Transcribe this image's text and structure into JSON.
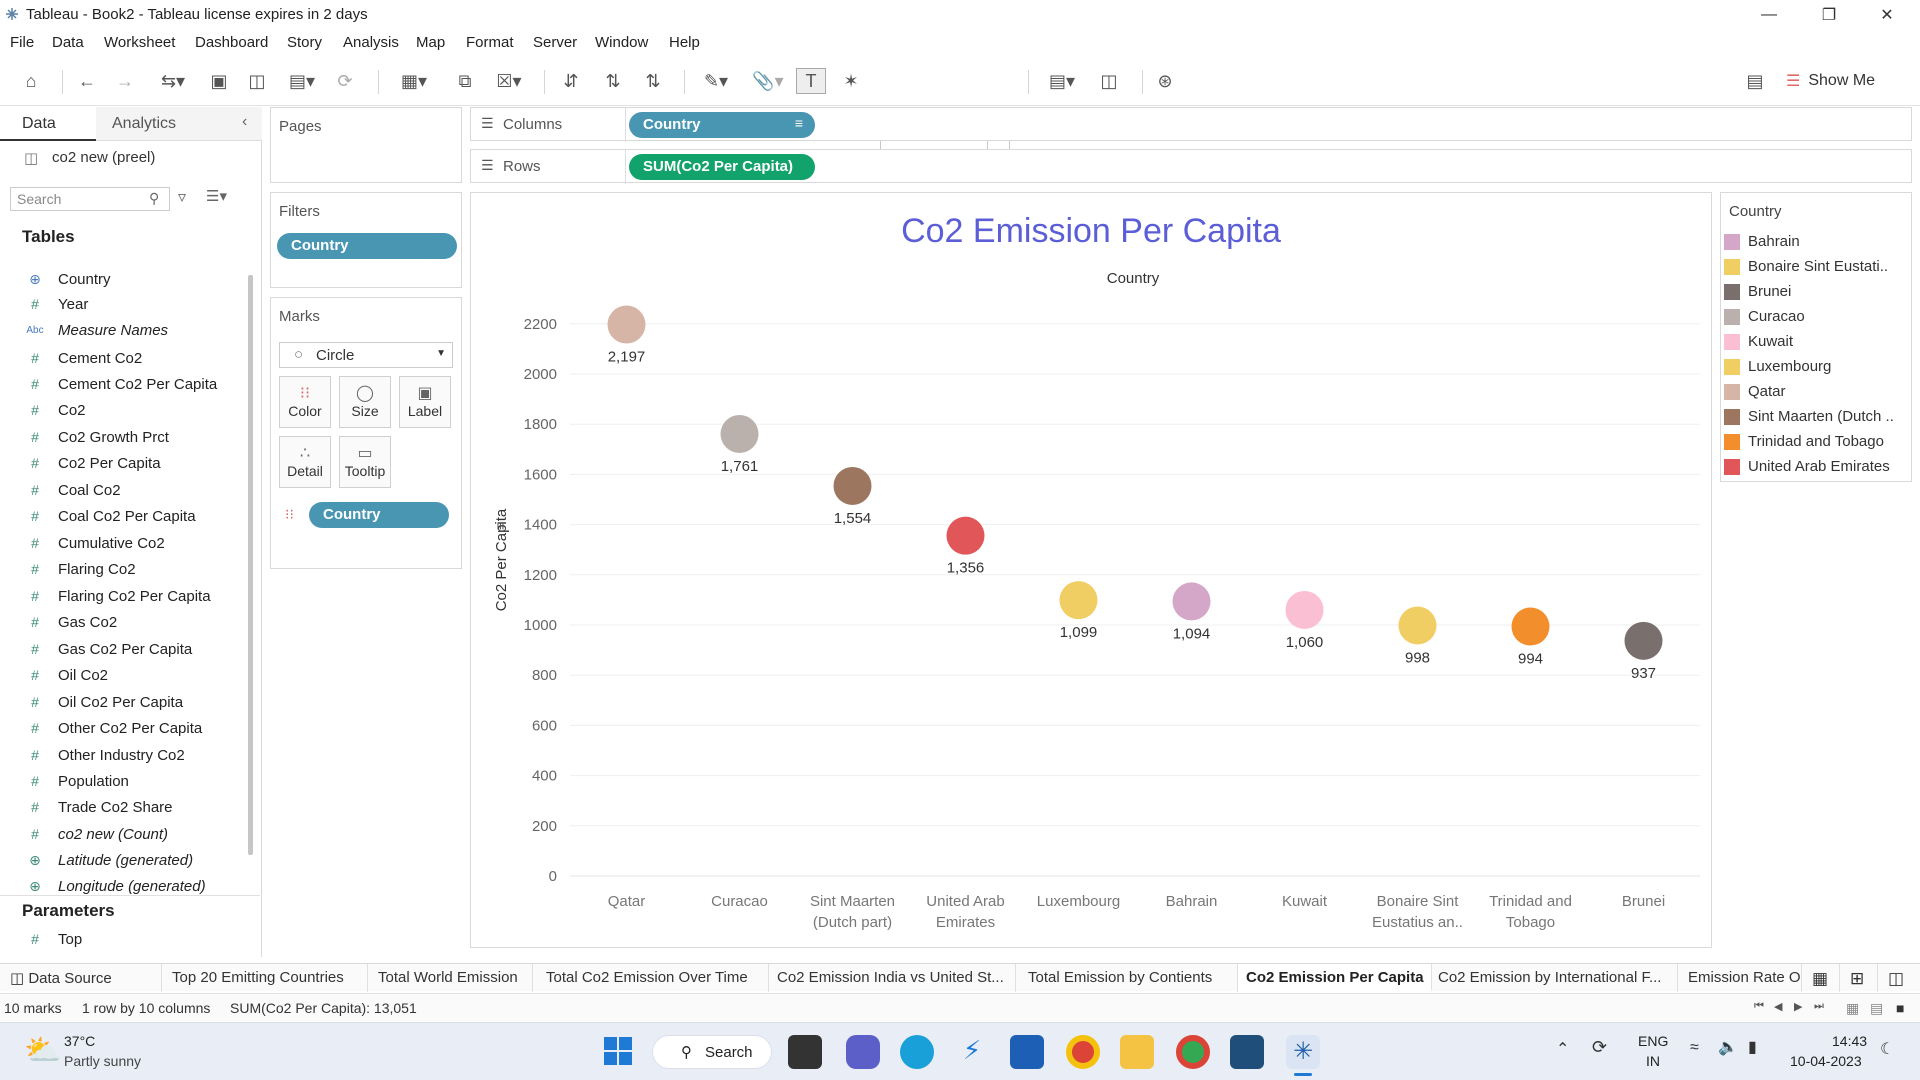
{
  "window": {
    "title": "Tableau - Book2 - Tableau license expires in 2 days"
  },
  "menu": [
    "File",
    "Data",
    "Worksheet",
    "Dashboard",
    "Story",
    "Analysis",
    "Map",
    "Format",
    "Server",
    "Window",
    "Help"
  ],
  "toolbar": {
    "view_select": "Entire View",
    "show_me": "Show Me"
  },
  "left_pane": {
    "tabs": [
      "Data",
      "Analytics"
    ],
    "datasource": "co2 new (preel)",
    "search_placeholder": "Search",
    "tables_header": "Tables",
    "fields": [
      {
        "icon": "⊕",
        "name": "Country",
        "italic": false
      },
      {
        "icon": "#",
        "name": "Year",
        "italic": false
      },
      {
        "icon": "Abc",
        "name": "Measure Names",
        "italic": true
      },
      {
        "icon": "#",
        "name": "Cement Co2",
        "italic": false
      },
      {
        "icon": "#",
        "name": "Cement Co2 Per Capita",
        "italic": false
      },
      {
        "icon": "#",
        "name": "Co2",
        "italic": false
      },
      {
        "icon": "#",
        "name": "Co2 Growth Prct",
        "italic": false
      },
      {
        "icon": "#",
        "name": "Co2 Per Capita",
        "italic": false
      },
      {
        "icon": "#",
        "name": "Coal Co2",
        "italic": false
      },
      {
        "icon": "#",
        "name": "Coal Co2 Per Capita",
        "italic": false
      },
      {
        "icon": "#",
        "name": "Cumulative Co2",
        "italic": false
      },
      {
        "icon": "#",
        "name": "Flaring Co2",
        "italic": false
      },
      {
        "icon": "#",
        "name": "Flaring Co2 Per Capita",
        "italic": false
      },
      {
        "icon": "#",
        "name": "Gas Co2",
        "italic": false
      },
      {
        "icon": "#",
        "name": "Gas Co2 Per Capita",
        "italic": false
      },
      {
        "icon": "#",
        "name": "Oil Co2",
        "italic": false
      },
      {
        "icon": "#",
        "name": "Oil Co2 Per Capita",
        "italic": false
      },
      {
        "icon": "#",
        "name": "Other Co2 Per Capita",
        "italic": false
      },
      {
        "icon": "#",
        "name": "Other Industry Co2",
        "italic": false
      },
      {
        "icon": "#",
        "name": "Population",
        "italic": false
      },
      {
        "icon": "#",
        "name": "Trade Co2 Share",
        "italic": false
      },
      {
        "icon": "#",
        "name": "co2 new (Count)",
        "italic": true
      },
      {
        "icon": "⊕",
        "name": "Latitude (generated)",
        "italic": true
      },
      {
        "icon": "⊕",
        "name": "Longitude (generated)",
        "italic": true
      }
    ],
    "parameters_header": "Parameters",
    "parameters": [
      {
        "icon": "#",
        "name": "Top"
      }
    ]
  },
  "shelves": {
    "pages": "Pages",
    "filters": "Filters",
    "filter_pill": "Country",
    "marks": "Marks",
    "mark_type": "Circle",
    "mark_buttons": [
      "Color",
      "Size",
      "Label",
      "Detail",
      "Tooltip"
    ],
    "marks_pill": "Country",
    "columns_label": "Columns",
    "columns_pill": "Country",
    "rows_label": "Rows",
    "rows_pill": "SUM(Co2 Per Capita)"
  },
  "legend": {
    "title": "Country",
    "items": [
      {
        "name": "Bahrain",
        "color": "#d4a6c8"
      },
      {
        "name": "Bonaire Sint Eustati..",
        "color": "#f1ce63"
      },
      {
        "name": "Brunei",
        "color": "#79706e"
      },
      {
        "name": "Curacao",
        "color": "#bab0ac"
      },
      {
        "name": "Kuwait",
        "color": "#fabfd2"
      },
      {
        "name": "Luxembourg",
        "color": "#f1ce63"
      },
      {
        "name": "Qatar",
        "color": "#d7b5a6"
      },
      {
        "name": "Sint Maarten (Dutch ..",
        "color": "#9d7660"
      },
      {
        "name": "Trinidad and Tobago",
        "color": "#f28e2b"
      },
      {
        "name": "United Arab Emirates",
        "color": "#e15759"
      }
    ]
  },
  "chart_data": {
    "type": "scatter",
    "title": "Co2 Emission Per Capita",
    "header": "Country",
    "ylabel": "Co2 Per Capita",
    "ylim": [
      0,
      2300
    ],
    "yticks": [
      0,
      200,
      400,
      600,
      800,
      1000,
      1200,
      1400,
      1600,
      1800,
      2000,
      2200
    ],
    "categories": [
      {
        "l1": "Qatar",
        "l2": ""
      },
      {
        "l1": "Curacao",
        "l2": ""
      },
      {
        "l1": "Sint Maarten",
        "l2": "(Dutch part)"
      },
      {
        "l1": "United Arab",
        "l2": "Emirates"
      },
      {
        "l1": "Luxembourg",
        "l2": ""
      },
      {
        "l1": "Bahrain",
        "l2": ""
      },
      {
        "l1": "Kuwait",
        "l2": ""
      },
      {
        "l1": "Bonaire Sint",
        "l2": "Eustatius an.."
      },
      {
        "l1": "Trinidad and",
        "l2": "Tobago"
      },
      {
        "l1": "Brunei",
        "l2": ""
      }
    ],
    "values": [
      2197,
      1761,
      1554,
      1356,
      1099,
      1094,
      1060,
      998,
      994,
      937
    ],
    "labels": [
      "2,197",
      "1,761",
      "1,554",
      "1,356",
      "1,099",
      "1,094",
      "1,060",
      "998",
      "994",
      "937"
    ],
    "colors": [
      "#d7b5a6",
      "#bab0ac",
      "#9d7660",
      "#e15759",
      "#f1ce63",
      "#d4a6c8",
      "#fabfd2",
      "#f1ce63",
      "#f28e2b",
      "#79706e"
    ],
    "grid": true
  },
  "sheet_tabs": [
    "Data Source",
    "Top 20 Emitting Countries",
    "Total World Emission",
    "Total Co2 Emission Over Time",
    "Co2 Emission India vs United St...",
    "Total Emission by Contients",
    "Co2 Emission Per Capita",
    "Co2 Emission by International F...",
    "Emission Rate O"
  ],
  "active_tab": "Co2 Emission Per Capita",
  "status": {
    "marks": "10 marks",
    "rows_cols": "1 row by 10 columns",
    "sum": "SUM(Co2 Per Capita): 13,051"
  },
  "taskbar": {
    "weather_temp": "37°C",
    "weather_desc": "Partly sunny",
    "search": "Search",
    "lang1": "ENG",
    "lang2": "IN",
    "time": "14:43",
    "date": "10-04-2023"
  }
}
